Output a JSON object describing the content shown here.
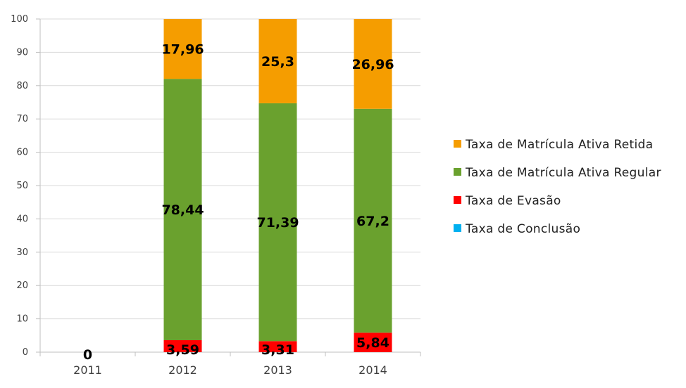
{
  "chart_data": {
    "type": "bar",
    "stacked": true,
    "categories": [
      "2011",
      "2012",
      "2013",
      "2014"
    ],
    "ylim": [
      0,
      100
    ],
    "yticks": [
      0,
      10,
      20,
      30,
      40,
      50,
      60,
      70,
      80,
      90,
      100
    ],
    "grid": true,
    "legend_position": "right",
    "series": [
      {
        "name": "Taxa de Conclusão",
        "color": "#00b0f0",
        "values": [
          0,
          0,
          0,
          0
        ]
      },
      {
        "name": "Taxa de Evasão",
        "color": "#ff0000",
        "values": [
          0,
          3.59,
          3.31,
          5.84
        ]
      },
      {
        "name": "Taxa de Matrícula Ativa Regular",
        "color": "#6aa12e",
        "values": [
          0,
          78.44,
          71.39,
          67.2
        ]
      },
      {
        "name": "Taxa de Matrícula Ativa Retida",
        "color": "#f59d00",
        "values": [
          0,
          17.96,
          25.3,
          26.96
        ]
      }
    ],
    "data_labels": [
      {
        "category": "2011",
        "series": "Taxa de Evasão",
        "text": "0"
      },
      {
        "category": "2012",
        "series": "Taxa de Evasão",
        "text": "3,59"
      },
      {
        "category": "2012",
        "series": "Taxa de Matrícula Ativa Regular",
        "text": "78,44"
      },
      {
        "category": "2012",
        "series": "Taxa de Matrícula Ativa Retida",
        "text": "17,96"
      },
      {
        "category": "2013",
        "series": "Taxa de Evasão",
        "text": "3,31"
      },
      {
        "category": "2013",
        "series": "Taxa de Matrícula Ativa Regular",
        "text": "71,39"
      },
      {
        "category": "2013",
        "series": "Taxa de Matrícula Ativa Retida",
        "text": "25,3"
      },
      {
        "category": "2014",
        "series": "Taxa de Evasão",
        "text": "5,84"
      },
      {
        "category": "2014",
        "series": "Taxa de Matrícula Ativa Regular",
        "text": "67,2"
      },
      {
        "category": "2014",
        "series": "Taxa de Matrícula Ativa Retida",
        "text": "26,96"
      }
    ],
    "legend": [
      {
        "label": "Taxa de Matrícula Ativa Retida",
        "color": "#f59d00"
      },
      {
        "label": "Taxa de Matrícula Ativa Regular",
        "color": "#6aa12e"
      },
      {
        "label": "Taxa de Evasão",
        "color": "#ff0000"
      },
      {
        "label": "Taxa de Conclusão",
        "color": "#00b0f0"
      }
    ]
  }
}
